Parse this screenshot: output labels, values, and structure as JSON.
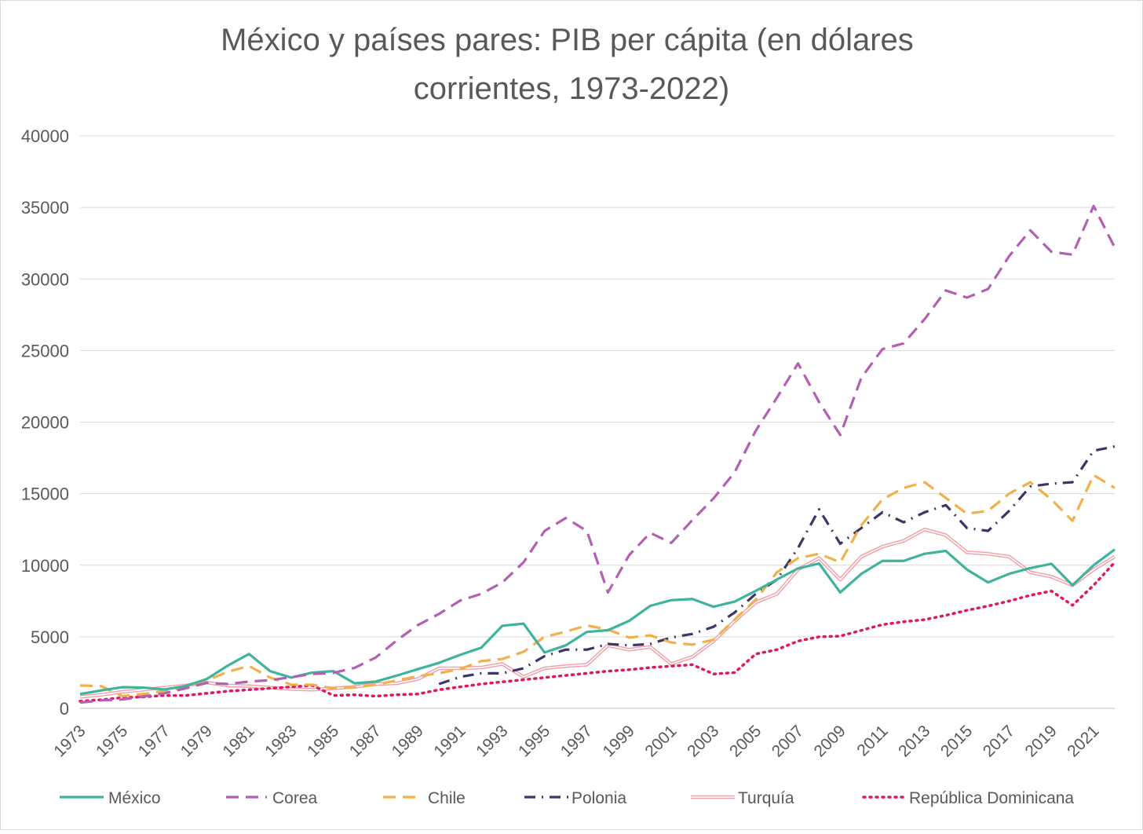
{
  "chart_data": {
    "type": "line",
    "title": "México y países pares: PIB per cápita (en dólares corrientes, 1973-2022)",
    "title_lines": [
      "México y países pares: PIB per cápita (en dólares",
      "corrientes, 1973-2022)"
    ],
    "xlabel": "",
    "ylabel": "",
    "ylim": [
      0,
      40000
    ],
    "yticks": [
      0,
      5000,
      10000,
      15000,
      20000,
      25000,
      30000,
      35000,
      40000
    ],
    "ytick_labels": [
      "0",
      "5000",
      "10000",
      "15000",
      "20000",
      "25000",
      "30000",
      "35000",
      "40000"
    ],
    "x": [
      1973,
      1974,
      1975,
      1976,
      1977,
      1978,
      1979,
      1980,
      1981,
      1982,
      1983,
      1984,
      1985,
      1986,
      1987,
      1988,
      1989,
      1990,
      1991,
      1992,
      1993,
      1994,
      1995,
      1996,
      1997,
      1998,
      1999,
      2000,
      2001,
      2002,
      2003,
      2004,
      2005,
      2006,
      2007,
      2008,
      2009,
      2010,
      2011,
      2012,
      2013,
      2014,
      2015,
      2016,
      2017,
      2018,
      2019,
      2020,
      2021,
      2022
    ],
    "xtick_labels": [
      "1973",
      "1975",
      "1977",
      "1979",
      "1981",
      "1983",
      "1985",
      "1987",
      "1989",
      "1991",
      "1993",
      "1995",
      "1997",
      "1999",
      "2001",
      "2003",
      "2005",
      "2007",
      "2009",
      "2011",
      "2013",
      "2015",
      "2017",
      "2019",
      "2021"
    ],
    "grid": true,
    "legend_position": "bottom",
    "series": [
      {
        "name": "México",
        "color": "#3fb39b",
        "style": "solid",
        "values": [
          1000,
          1250,
          1480,
          1450,
          1320,
          1560,
          2050,
          2990,
          3800,
          2600,
          2150,
          2500,
          2600,
          1750,
          1870,
          2290,
          2740,
          3180,
          3740,
          4240,
          5770,
          5920,
          3900,
          4400,
          5340,
          5460,
          6110,
          7160,
          7560,
          7640,
          7100,
          7460,
          8210,
          9000,
          9780,
          10120,
          8100,
          9400,
          10300,
          10300,
          10800,
          11000,
          9700,
          8800,
          9400,
          9800,
          10100,
          8600,
          10000,
          11100
        ]
      },
      {
        "name": "Corea",
        "color": "#b35fb3",
        "style": "dashed",
        "values": [
          400,
          560,
          620,
          830,
          1050,
          1400,
          1780,
          1700,
          1870,
          1970,
          2180,
          2400,
          2480,
          2830,
          3550,
          4750,
          5820,
          6600,
          7530,
          8000,
          8800,
          10200,
          12400,
          13300,
          12400,
          8100,
          10700,
          12260,
          11560,
          13160,
          14670,
          16500,
          19400,
          21700,
          24100,
          21400,
          19100,
          23100,
          25100,
          25500,
          27200,
          29200,
          28700,
          29300,
          31600,
          33400,
          31900,
          31700,
          35100,
          32200
        ]
      },
      {
        "name": "Chile",
        "color": "#f0b04b",
        "style": "dashed",
        "values": [
          1600,
          1550,
          850,
          1000,
          1230,
          1430,
          1950,
          2560,
          2960,
          2150,
          1660,
          1650,
          1400,
          1450,
          1650,
          1950,
          2250,
          2450,
          2750,
          3300,
          3450,
          3950,
          5000,
          5350,
          5800,
          5500,
          4950,
          5100,
          4600,
          4450,
          4800,
          6200,
          7600,
          9500,
          10500,
          10800,
          10200,
          12800,
          14600,
          15400,
          15800,
          14700,
          13600,
          13800,
          15000,
          15800,
          14600,
          13100,
          16300,
          15400
        ]
      },
      {
        "name": "Polonia",
        "color": "#3d3566",
        "style": "dashdot",
        "values": [
          null,
          null,
          null,
          null,
          null,
          null,
          null,
          null,
          null,
          null,
          null,
          null,
          null,
          null,
          null,
          null,
          null,
          1700,
          2200,
          2450,
          2450,
          2800,
          3650,
          4100,
          4100,
          4500,
          4400,
          4500,
          4950,
          5200,
          5700,
          6700,
          8000,
          9000,
          11200,
          13900,
          11500,
          12600,
          13700,
          13000,
          13700,
          14200,
          12600,
          12400,
          13800,
          15500,
          15700,
          15800,
          18000,
          18300
        ]
      },
      {
        "name": "Turquía",
        "color": "#f2a0aa",
        "style": "double",
        "values": [
          800,
          950,
          1150,
          1300,
          1450,
          1600,
          1800,
          1600,
          1550,
          1450,
          1350,
          1300,
          1400,
          1500,
          1700,
          1750,
          2050,
          2800,
          2800,
          2850,
          3100,
          2200,
          2800,
          2950,
          3050,
          4400,
          4100,
          4300,
          3100,
          3600,
          4700,
          6100,
          7400,
          8000,
          9700,
          10500,
          9000,
          10600,
          11300,
          11700,
          12500,
          12100,
          10900,
          10800,
          10600,
          9500,
          9200,
          8600,
          9700,
          10600
        ]
      },
      {
        "name": "República Dominicana",
        "color": "#e0185f",
        "style": "dotted",
        "values": [
          500,
          600,
          750,
          800,
          900,
          900,
          1050,
          1200,
          1300,
          1400,
          1500,
          1600,
          900,
          950,
          850,
          950,
          1000,
          1300,
          1500,
          1700,
          1850,
          2000,
          2150,
          2300,
          2450,
          2600,
          2700,
          2850,
          2950,
          3050,
          2400,
          2500,
          3800,
          4100,
          4700,
          5000,
          5050,
          5450,
          5850,
          6050,
          6200,
          6500,
          6850,
          7150,
          7500,
          7900,
          8200,
          7200,
          8600,
          10200
        ]
      }
    ]
  }
}
